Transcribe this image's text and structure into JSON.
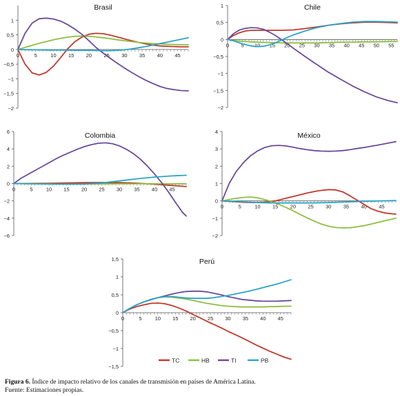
{
  "colors": {
    "TC": "#c0392b",
    "HB": "#8cbf3f",
    "TI": "#6a4a9a",
    "PB": "#2aa4c8"
  },
  "legend": [
    {
      "key": "TC",
      "label": "TC"
    },
    {
      "key": "HB",
      "label": "HB"
    },
    {
      "key": "TI",
      "label": "TI"
    },
    {
      "key": "PB",
      "label": "PB"
    }
  ],
  "caption": {
    "label": "Figura 6.",
    "text": "Índice de impacto relativo de los canales de transmisión en países de América Latina.",
    "source": "Fuente: Estimaciones propias."
  },
  "chart_data": [
    {
      "type": "line",
      "title": "Brasil",
      "xlim": [
        0,
        48
      ],
      "xticks": [
        0,
        5,
        10,
        15,
        20,
        25,
        30,
        35,
        40,
        45
      ],
      "ylim": [
        -2,
        1.5
      ],
      "yticks": [
        -2,
        -1.5,
        -1,
        -0.5,
        0,
        0.5,
        1
      ],
      "ytick_labels": [
        "−2",
        "−1,5",
        "−1",
        "−0,5",
        "0",
        "0,5",
        "1"
      ],
      "series": [
        {
          "name": "TC",
          "x": [
            0,
            2,
            4,
            6,
            8,
            10,
            12,
            14,
            16,
            18,
            20,
            22,
            24,
            26,
            28,
            30,
            32,
            34,
            36,
            38,
            40,
            42,
            44,
            46,
            48
          ],
          "y": [
            0,
            -0.5,
            -0.8,
            -0.87,
            -0.78,
            -0.57,
            -0.28,
            0.02,
            0.26,
            0.42,
            0.52,
            0.55,
            0.54,
            0.49,
            0.43,
            0.36,
            0.3,
            0.24,
            0.19,
            0.15,
            0.12,
            0.11,
            0.1,
            0.09,
            0.09
          ]
        },
        {
          "name": "HB",
          "x": [
            0,
            2,
            4,
            6,
            8,
            10,
            12,
            14,
            16,
            18,
            20,
            22,
            24,
            26,
            28,
            30,
            32,
            34,
            36,
            38,
            40,
            42,
            44,
            46,
            48
          ],
          "y": [
            0,
            0.07,
            0.14,
            0.21,
            0.27,
            0.33,
            0.38,
            0.42,
            0.45,
            0.46,
            0.45,
            0.43,
            0.4,
            0.37,
            0.33,
            0.3,
            0.27,
            0.24,
            0.22,
            0.2,
            0.19,
            0.18,
            0.17,
            0.16,
            0.16
          ]
        },
        {
          "name": "TI",
          "x": [
            0,
            2,
            4,
            6,
            8,
            10,
            12,
            14,
            16,
            18,
            20,
            22,
            24,
            26,
            28,
            30,
            32,
            34,
            36,
            38,
            40,
            42,
            44,
            46,
            48
          ],
          "y": [
            0,
            0.55,
            0.9,
            1.05,
            1.07,
            1.04,
            0.97,
            0.85,
            0.7,
            0.52,
            0.3,
            0.07,
            -0.12,
            -0.3,
            -0.47,
            -0.63,
            -0.78,
            -0.92,
            -1.05,
            -1.16,
            -1.26,
            -1.33,
            -1.37,
            -1.4,
            -1.41
          ]
        },
        {
          "name": "PB",
          "x": [
            0,
            4,
            8,
            12,
            16,
            20,
            24,
            26,
            28,
            30,
            32,
            34,
            36,
            38,
            40,
            42,
            44,
            46,
            48
          ],
          "y": [
            0,
            -0.01,
            -0.02,
            -0.02,
            -0.03,
            -0.03,
            -0.04,
            -0.04,
            -0.03,
            -0.01,
            0.02,
            0.06,
            0.1,
            0.15,
            0.2,
            0.25,
            0.3,
            0.35,
            0.4
          ]
        }
      ]
    },
    {
      "type": "line",
      "title": "Chile",
      "xlim": [
        0,
        57
      ],
      "xticks": [
        0,
        5,
        10,
        15,
        20,
        25,
        30,
        35,
        40,
        45,
        50,
        55
      ],
      "ylim": [
        -2,
        1
      ],
      "yticks": [
        -2,
        -1.5,
        -1,
        -0.5,
        0,
        0.5,
        1
      ],
      "ytick_labels": [
        "−2",
        "−1,5",
        "−1",
        "−0,5",
        "0",
        "0,5",
        "1"
      ],
      "series": [
        {
          "name": "TC",
          "x": [
            0,
            2,
            4,
            6,
            8,
            10,
            14,
            18,
            22,
            26,
            30,
            34,
            38,
            42,
            46,
            50,
            54,
            57
          ],
          "y": [
            0,
            0.12,
            0.2,
            0.25,
            0.27,
            0.27,
            0.27,
            0.27,
            0.28,
            0.32,
            0.37,
            0.42,
            0.46,
            0.49,
            0.51,
            0.51,
            0.5,
            0.49
          ]
        },
        {
          "name": "HB",
          "x": [
            0,
            2,
            4,
            6,
            10,
            14,
            18,
            22,
            26,
            30,
            34,
            38,
            42,
            46,
            50,
            54,
            57
          ],
          "y": [
            0,
            -0.03,
            -0.05,
            -0.06,
            -0.08,
            -0.09,
            -0.1,
            -0.1,
            -0.1,
            -0.1,
            -0.09,
            -0.08,
            -0.08,
            -0.07,
            -0.07,
            -0.06,
            -0.06
          ]
        },
        {
          "name": "TI",
          "x": [
            0,
            2,
            4,
            6,
            8,
            10,
            12,
            14,
            16,
            18,
            20,
            22,
            26,
            30,
            34,
            38,
            42,
            46,
            50,
            54,
            57
          ],
          "y": [
            0,
            0.17,
            0.28,
            0.33,
            0.35,
            0.34,
            0.3,
            0.22,
            0.12,
            0,
            -0.12,
            -0.25,
            -0.5,
            -0.74,
            -0.97,
            -1.17,
            -1.37,
            -1.54,
            -1.69,
            -1.8,
            -1.86
          ]
        },
        {
          "name": "PB",
          "x": [
            0,
            2,
            4,
            6,
            8,
            10,
            12,
            14,
            16,
            18,
            20,
            22,
            24,
            26,
            28,
            30,
            34,
            38,
            42,
            46,
            50,
            54,
            57
          ],
          "y": [
            0,
            -0.04,
            -0.1,
            -0.15,
            -0.19,
            -0.21,
            -0.2,
            -0.16,
            -0.1,
            -0.02,
            0.06,
            0.13,
            0.19,
            0.25,
            0.3,
            0.35,
            0.42,
            0.47,
            0.51,
            0.53,
            0.53,
            0.52,
            0.51
          ]
        }
      ]
    },
    {
      "type": "line",
      "title": "Colombia",
      "xlim": [
        0,
        49
      ],
      "xticks": [
        0,
        5,
        10,
        15,
        20,
        25,
        30,
        35,
        40,
        45
      ],
      "ylim": [
        -6,
        6
      ],
      "yticks": [
        -6,
        -4,
        -2,
        0,
        2,
        4,
        6
      ],
      "ytick_labels": [
        "−6",
        "−4",
        "−2",
        "0",
        "2",
        "4",
        "6"
      ],
      "series": [
        {
          "name": "TC",
          "x": [
            0,
            5,
            10,
            15,
            20,
            25,
            30,
            35,
            40,
            45,
            49
          ],
          "y": [
            0,
            0.01,
            0.03,
            0.06,
            0.1,
            0.12,
            0.1,
            0.04,
            -0.08,
            -0.22,
            -0.35
          ]
        },
        {
          "name": "HB",
          "x": [
            0,
            5,
            10,
            15,
            20,
            25,
            30,
            35,
            40,
            45,
            49
          ],
          "y": [
            0,
            -0.02,
            -0.04,
            -0.06,
            -0.06,
            -0.05,
            -0.03,
            -0.02,
            -0.02,
            -0.03,
            -0.04
          ]
        },
        {
          "name": "TI",
          "x": [
            0,
            2,
            4,
            6,
            8,
            10,
            12,
            14,
            16,
            18,
            20,
            22,
            24,
            26,
            28,
            30,
            32,
            34,
            36,
            38,
            40,
            42,
            44,
            46,
            48,
            49
          ],
          "y": [
            0,
            0.6,
            1.05,
            1.5,
            1.95,
            2.4,
            2.85,
            3.25,
            3.6,
            3.95,
            4.25,
            4.48,
            4.65,
            4.7,
            4.6,
            4.35,
            3.95,
            3.45,
            2.8,
            2.0,
            1.1,
            0.1,
            -1.0,
            -2.2,
            -3.35,
            -3.75
          ]
        },
        {
          "name": "PB",
          "x": [
            0,
            5,
            10,
            15,
            20,
            25,
            30,
            35,
            40,
            45,
            49
          ],
          "y": [
            0,
            -0.03,
            -0.07,
            -0.08,
            -0.06,
            0.06,
            0.3,
            0.55,
            0.75,
            0.88,
            0.95
          ]
        }
      ]
    },
    {
      "type": "line",
      "title": "México",
      "xlim": [
        0,
        49
      ],
      "xticks": [
        0,
        5,
        10,
        15,
        20,
        25,
        30,
        35,
        40,
        45
      ],
      "ylim": [
        -2,
        4
      ],
      "yticks": [
        -2,
        -1,
        0,
        1,
        2,
        3,
        4
      ],
      "ytick_labels": [
        "−2",
        "−1",
        "0",
        "1",
        "2",
        "3",
        "4"
      ],
      "series": [
        {
          "name": "TC",
          "x": [
            0,
            3,
            6,
            9,
            12,
            15,
            18,
            21,
            24,
            27,
            30,
            32,
            34,
            36,
            38,
            40,
            42,
            44,
            46,
            48,
            49
          ],
          "y": [
            0,
            -0.04,
            -0.08,
            -0.1,
            -0.08,
            0,
            0.15,
            0.3,
            0.45,
            0.58,
            0.65,
            0.63,
            0.52,
            0.3,
            0.05,
            -0.2,
            -0.45,
            -0.6,
            -0.7,
            -0.75,
            -0.76
          ]
        },
        {
          "name": "HB",
          "x": [
            0,
            2,
            4,
            6,
            8,
            10,
            12,
            14,
            16,
            18,
            20,
            22,
            24,
            26,
            28,
            30,
            32,
            34,
            36,
            38,
            40,
            42,
            44,
            46,
            48,
            49
          ],
          "y": [
            0,
            0.08,
            0.15,
            0.2,
            0.22,
            0.18,
            0.08,
            -0.05,
            -0.2,
            -0.38,
            -0.57,
            -0.78,
            -0.98,
            -1.17,
            -1.34,
            -1.46,
            -1.54,
            -1.56,
            -1.55,
            -1.5,
            -1.43,
            -1.34,
            -1.24,
            -1.14,
            -1.05,
            -1.0
          ]
        },
        {
          "name": "TI",
          "x": [
            0,
            2,
            4,
            6,
            8,
            10,
            12,
            14,
            16,
            18,
            20,
            22,
            24,
            26,
            28,
            30,
            32,
            34,
            36,
            38,
            40,
            42,
            44,
            46,
            48,
            49
          ],
          "y": [
            0,
            1.0,
            1.7,
            2.2,
            2.6,
            2.88,
            3.08,
            3.18,
            3.2,
            3.17,
            3.1,
            3.02,
            2.95,
            2.9,
            2.87,
            2.86,
            2.87,
            2.9,
            2.95,
            3.02,
            3.08,
            3.15,
            3.22,
            3.3,
            3.38,
            3.42
          ]
        },
        {
          "name": "PB",
          "x": [
            0,
            5,
            10,
            15,
            20,
            25,
            30,
            35,
            40,
            45,
            49
          ],
          "y": [
            0,
            -0.05,
            -0.1,
            -0.12,
            -0.12,
            -0.12,
            -0.1,
            -0.06,
            -0.02,
            0,
            0.02
          ]
        }
      ]
    },
    {
      "type": "line",
      "title": "Perú",
      "xlim": [
        0,
        48
      ],
      "xticks": [
        0,
        5,
        10,
        15,
        20,
        25,
        30,
        35,
        40,
        45
      ],
      "ylim": [
        -1.5,
        1.5
      ],
      "yticks": [
        -1.5,
        -1,
        -0.5,
        0,
        0.5,
        1,
        1.5
      ],
      "ytick_labels": [
        "−1,5",
        "−1",
        "−0,5",
        "0",
        "0,5",
        "1",
        "1,5"
      ],
      "series": [
        {
          "name": "TC",
          "x": [
            0,
            2,
            4,
            6,
            8,
            10,
            12,
            14,
            16,
            18,
            20,
            22,
            24,
            26,
            28,
            30,
            32,
            34,
            36,
            38,
            40,
            42,
            44,
            46,
            48
          ],
          "y": [
            0,
            0.1,
            0.17,
            0.22,
            0.26,
            0.27,
            0.25,
            0.2,
            0.13,
            0.05,
            -0.05,
            -0.14,
            -0.24,
            -0.33,
            -0.42,
            -0.52,
            -0.61,
            -0.7,
            -0.8,
            -0.9,
            -0.99,
            -1.08,
            -1.16,
            -1.24,
            -1.3
          ]
        },
        {
          "name": "HB",
          "x": [
            0,
            2,
            4,
            6,
            8,
            10,
            12,
            14,
            16,
            18,
            20,
            22,
            24,
            26,
            28,
            30,
            32,
            34,
            36,
            38,
            40,
            42,
            44,
            46,
            48
          ],
          "y": [
            0,
            0.12,
            0.22,
            0.3,
            0.37,
            0.42,
            0.44,
            0.43,
            0.41,
            0.38,
            0.34,
            0.3,
            0.26,
            0.23,
            0.2,
            0.18,
            0.17,
            0.16,
            0.16,
            0.16,
            0.16,
            0.17,
            0.17,
            0.18,
            0.18
          ]
        },
        {
          "name": "TI",
          "x": [
            0,
            2,
            4,
            6,
            8,
            10,
            12,
            14,
            16,
            18,
            20,
            22,
            24,
            26,
            28,
            30,
            32,
            34,
            36,
            38,
            40,
            42,
            44,
            46,
            48
          ],
          "y": [
            0,
            0.12,
            0.22,
            0.3,
            0.36,
            0.42,
            0.47,
            0.52,
            0.56,
            0.59,
            0.6,
            0.6,
            0.58,
            0.54,
            0.5,
            0.45,
            0.41,
            0.37,
            0.35,
            0.33,
            0.32,
            0.32,
            0.32,
            0.33,
            0.34
          ]
        },
        {
          "name": "PB",
          "x": [
            0,
            2,
            4,
            6,
            8,
            10,
            12,
            14,
            16,
            18,
            20,
            22,
            24,
            26,
            28,
            30,
            32,
            34,
            36,
            38,
            40,
            42,
            44,
            46,
            48
          ],
          "y": [
            0,
            0.12,
            0.22,
            0.3,
            0.37,
            0.42,
            0.45,
            0.45,
            0.43,
            0.41,
            0.4,
            0.4,
            0.4,
            0.42,
            0.45,
            0.48,
            0.52,
            0.56,
            0.6,
            0.65,
            0.7,
            0.75,
            0.8,
            0.86,
            0.92
          ]
        }
      ]
    }
  ]
}
